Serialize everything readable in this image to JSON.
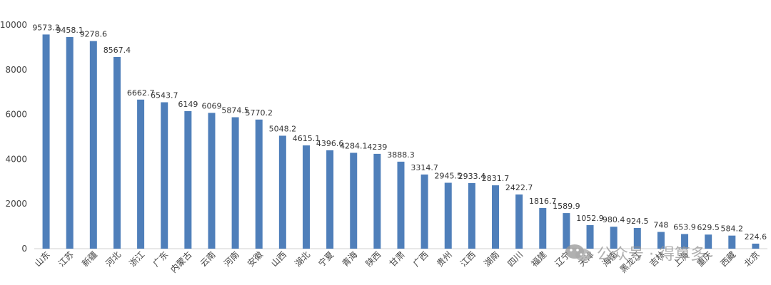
{
  "chart_data": {
    "type": "bar",
    "categories": [
      "山东",
      "江苏",
      "新疆",
      "河北",
      "浙江",
      "广东",
      "内蒙古",
      "云南",
      "河南",
      "安徽",
      "山西",
      "湖北",
      "宁夏",
      "青海",
      "陕西",
      "甘肃",
      "广西",
      "贵州",
      "江西",
      "湖南",
      "四川",
      "福建",
      "辽宁",
      "天津",
      "海南",
      "黑龙江",
      "吉林",
      "上海",
      "重庆",
      "西藏",
      "北京"
    ],
    "values": [
      9573.3,
      9458.1,
      9278.6,
      8567.4,
      6662.7,
      6543.7,
      6149,
      6069,
      5874.5,
      5770.2,
      5048.2,
      4615.1,
      4396.6,
      4284.1,
      4239,
      3888.3,
      3314.7,
      2945.5,
      2933.4,
      2831.7,
      2422.7,
      1816.7,
      1589.9,
      1052.9,
      980.4,
      924.5,
      748,
      653.9,
      629.5,
      584.2,
      224.6
    ],
    "value_labels": [
      "9573.3",
      "9458.1",
      "9278.6",
      "8567.4",
      "6662.7",
      "6543.7",
      "6149",
      "6069",
      "5874.5",
      "5770.2",
      "5048.2",
      "4615.1",
      "4396.6",
      "4284.1",
      "4239",
      "3888.3",
      "3314.7",
      "2945.5",
      "2933.4",
      "2831.7",
      "2422.7",
      "1816.7",
      "1589.9",
      "1052.9",
      "980.4",
      "924.5",
      "748",
      "653.9",
      "629.5",
      "584.2",
      "224.6"
    ],
    "yticks": [
      "0",
      "2000",
      "4000",
      "6000",
      "8000",
      "10000"
    ],
    "ylim": [
      0,
      10000
    ],
    "title": "",
    "xlabel": "",
    "ylabel": "",
    "grid": false,
    "bar_color": "#4f7fba"
  },
  "watermark": {
    "text": "公众号 · 得算多",
    "icon": "wechat-icon",
    "color": "#999999"
  }
}
